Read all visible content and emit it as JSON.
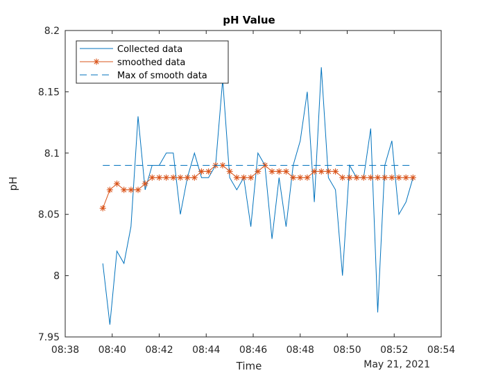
{
  "figure": {
    "colors": {
      "background": "#ffffff",
      "axes": "#262626",
      "collected": "#0072BD",
      "smoothed": "#D95319",
      "max_line": "#0072BD"
    }
  },
  "chart_data": {
    "type": "line",
    "title": "pH Value",
    "xlabel": "Time",
    "ylabel": "pH",
    "date_label": "May 21, 2021",
    "xlim": [
      "08:38",
      "08:54"
    ],
    "ylim": [
      7.95,
      8.2
    ],
    "x_ticks": [
      "08:38",
      "08:40",
      "08:42",
      "08:44",
      "08:46",
      "08:48",
      "08:50",
      "08:52",
      "08:54"
    ],
    "y_ticks": [
      "7.95",
      "8",
      "8.05",
      "8.1",
      "8.15",
      "8.2"
    ],
    "grid": false,
    "legend_position": "top-left",
    "series": [
      {
        "name": "Collected data",
        "style": "solid",
        "x": [
          "08:39:36",
          "08:39:54",
          "08:40:12",
          "08:40:30",
          "08:40:48",
          "08:41:06",
          "08:41:24",
          "08:41:42",
          "08:42:00",
          "08:42:18",
          "08:42:36",
          "08:42:54",
          "08:43:12",
          "08:43:30",
          "08:43:48",
          "08:44:06",
          "08:44:24",
          "08:44:42",
          "08:45:00",
          "08:45:18",
          "08:45:36",
          "08:45:54",
          "08:46:12",
          "08:46:30",
          "08:46:48",
          "08:47:06",
          "08:47:24",
          "08:47:42",
          "08:48:00",
          "08:48:18",
          "08:48:36",
          "08:48:54",
          "08:49:12",
          "08:49:30",
          "08:49:48",
          "08:50:06",
          "08:50:24",
          "08:50:42",
          "08:51:00",
          "08:51:18",
          "08:51:36",
          "08:51:54",
          "08:52:12",
          "08:52:30",
          "08:52:48"
        ],
        "y": [
          8.01,
          7.96,
          8.02,
          8.01,
          8.04,
          8.13,
          8.07,
          8.09,
          8.09,
          8.1,
          8.1,
          8.05,
          8.08,
          8.1,
          8.08,
          8.08,
          8.09,
          8.16,
          8.08,
          8.07,
          8.08,
          8.04,
          8.1,
          8.09,
          8.03,
          8.08,
          8.04,
          8.09,
          8.11,
          8.15,
          8.06,
          8.17,
          8.08,
          8.07,
          8.0,
          8.09,
          8.08,
          8.08,
          8.12,
          7.97,
          8.09,
          8.11,
          8.05,
          8.06,
          8.08
        ]
      },
      {
        "name": "smoothed data",
        "style": "asterisk-markers",
        "x": [
          "08:39:36",
          "08:39:54",
          "08:40:12",
          "08:40:30",
          "08:40:48",
          "08:41:06",
          "08:41:24",
          "08:41:42",
          "08:42:00",
          "08:42:18",
          "08:42:36",
          "08:42:54",
          "08:43:12",
          "08:43:30",
          "08:43:48",
          "08:44:06",
          "08:44:24",
          "08:44:42",
          "08:45:00",
          "08:45:18",
          "08:45:36",
          "08:45:54",
          "08:46:12",
          "08:46:30",
          "08:46:48",
          "08:47:06",
          "08:47:24",
          "08:47:42",
          "08:48:00",
          "08:48:18",
          "08:48:36",
          "08:48:54",
          "08:49:12",
          "08:49:30",
          "08:49:48",
          "08:50:06",
          "08:50:24",
          "08:50:42",
          "08:51:00",
          "08:51:18",
          "08:51:36",
          "08:51:54",
          "08:52:12",
          "08:52:30",
          "08:52:48"
        ],
        "y": [
          8.055,
          8.07,
          8.075,
          8.07,
          8.07,
          8.07,
          8.075,
          8.08,
          8.08,
          8.08,
          8.08,
          8.08,
          8.08,
          8.08,
          8.085,
          8.085,
          8.09,
          8.09,
          8.085,
          8.08,
          8.08,
          8.08,
          8.085,
          8.09,
          8.085,
          8.085,
          8.085,
          8.08,
          8.08,
          8.08,
          8.085,
          8.085,
          8.085,
          8.085,
          8.08,
          8.08,
          8.08,
          8.08,
          8.08,
          8.08,
          8.08,
          8.08,
          8.08,
          8.08,
          8.08
        ]
      },
      {
        "name": "Max of smooth data",
        "style": "dashed",
        "x": [
          "08:39:36",
          "08:52:48"
        ],
        "y": [
          8.09,
          8.09
        ]
      }
    ]
  }
}
